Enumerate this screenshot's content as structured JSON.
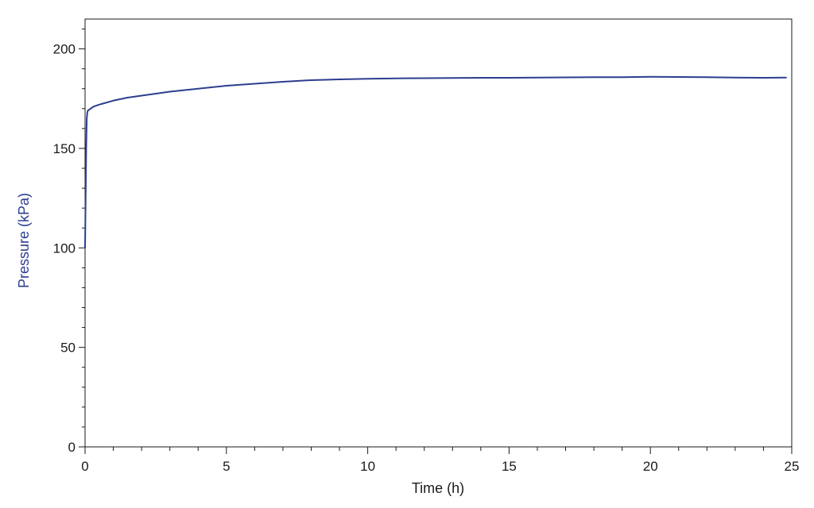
{
  "chart_data": {
    "type": "line",
    "title": "",
    "xlabel": "Time (h)",
    "ylabel": "Pressure (kPa)",
    "xlim": [
      0,
      25
    ],
    "ylim": [
      0,
      215
    ],
    "x_ticks": [
      0,
      5,
      10,
      15,
      20,
      25
    ],
    "x_tick_labels": [
      "0",
      "5",
      "10",
      "15",
      "20",
      "25"
    ],
    "y_ticks": [
      0,
      50,
      100,
      150,
      200
    ],
    "y_tick_labels": [
      "0",
      "50",
      "100",
      "150",
      "200"
    ],
    "x_minor_step": 1,
    "y_minor_step": 10,
    "grid": false,
    "legend": "none",
    "colors": {
      "series": "#2c3e8f",
      "ylabel": "#2c3e8f",
      "axis": "#1a1a1a"
    },
    "series": [
      {
        "x": [
          0.0,
          0.02,
          0.04,
          0.06,
          0.08,
          0.1,
          0.3,
          0.5,
          1.0,
          1.5,
          2.0,
          3.0,
          4.0,
          5.0,
          6.0,
          7.0,
          8.0,
          9.0,
          10.0,
          11.0,
          12.0,
          13.0,
          14.0,
          15.0,
          16.0,
          17.0,
          18.0,
          19.0,
          20.0,
          21.0,
          22.0,
          23.0,
          24.0,
          24.8
        ],
        "y": [
          100,
          125,
          150,
          165,
          168,
          169,
          171,
          172,
          174,
          175.5,
          176.5,
          178.5,
          180,
          181.5,
          182.5,
          183.5,
          184.3,
          184.7,
          185,
          185.2,
          185.3,
          185.4,
          185.5,
          185.5,
          185.6,
          185.7,
          185.8,
          185.8,
          186,
          185.9,
          185.8,
          185.6,
          185.5,
          185.6
        ]
      }
    ]
  }
}
